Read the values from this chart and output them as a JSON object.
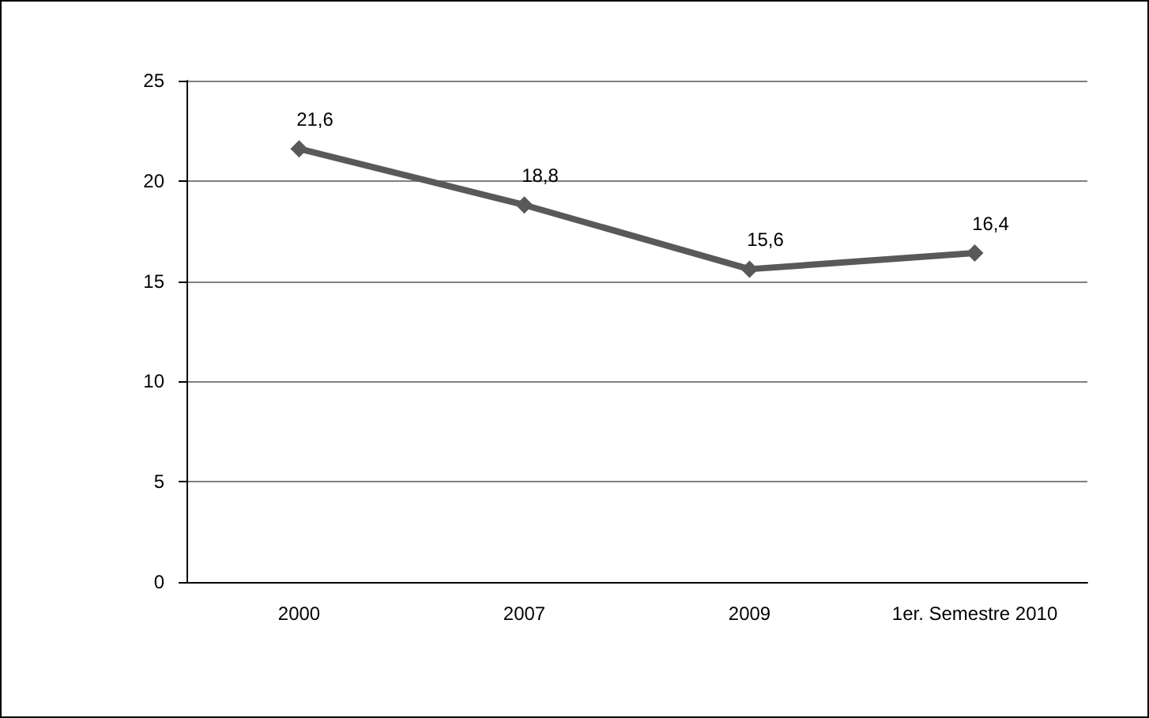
{
  "chart_data": {
    "type": "line",
    "categories": [
      "2000",
      "2007",
      "2009",
      "1er. Semestre 2010"
    ],
    "series": [
      {
        "color": "#595959",
        "values": [
          21.6,
          18.8,
          15.6,
          16.4
        ],
        "value_labels": [
          "21,6",
          "18,8",
          "15,6",
          "16,4"
        ]
      }
    ],
    "ylim": [
      0,
      25
    ],
    "yticks": [
      0,
      5,
      10,
      15,
      20,
      25
    ],
    "grid": "y",
    "marker": "diamond",
    "line_style": "solid"
  }
}
